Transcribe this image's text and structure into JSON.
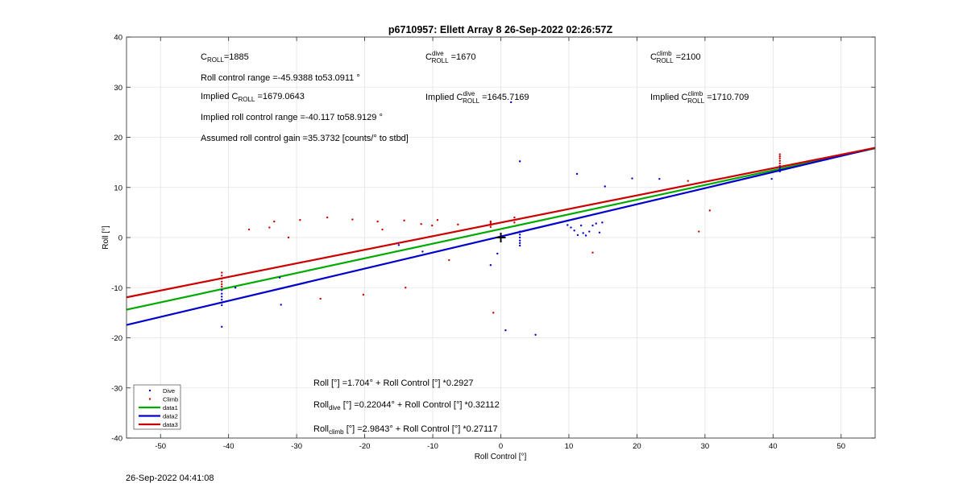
{
  "timestamp": "26-Sep-2022 04:41:08",
  "chart_data": {
    "type": "scatter",
    "title": "p6710957: Ellett Array 8 26-Sep-2022 02:26:57Z",
    "xlabel": "Roll Control [°]",
    "ylabel": "Roll [°]",
    "xlim": [
      -55,
      55
    ],
    "ylim": [
      -40,
      40
    ],
    "xticks": [
      -50,
      -40,
      -30,
      -20,
      -10,
      0,
      10,
      20,
      30,
      40,
      50
    ],
    "yticks": [
      -40,
      -30,
      -20,
      -10,
      0,
      10,
      20,
      30,
      40
    ],
    "grid": true,
    "legend_position": "bottom-left",
    "annotations": {
      "c_roll": "1885",
      "roll_range": "Roll control range =-45.9388 to53.0911 °",
      "implied_c_roll_label": "Implied C",
      "implied_c_roll": "=1679.0643",
      "implied_range": "Implied roll control range =-40.117 to58.9129 °",
      "gain": "Assumed roll control gain =35.3732 [counts/° to stbd]",
      "c_dive": "=1670",
      "implied_c_dive": "=1645.7169",
      "c_climb": "=2100",
      "implied_c_climb": "=1710.709",
      "fit_all": "Roll [°] =1.704° + Roll Control [°] *0.2927",
      "fit_dive": "[°] =0.22044° + Roll Control [°] *0.32112",
      "fit_climb": "[°] =2.9843° + Roll Control [°] *0.27117"
    },
    "series": [
      {
        "name": "Dive",
        "kind": "points",
        "color": "#0000cc",
        "points": [
          [
            -41,
            -10.5
          ],
          [
            -41,
            -11.2
          ],
          [
            -41,
            -11.8
          ],
          [
            -41,
            -12.4
          ],
          [
            -41,
            -13
          ],
          [
            -41,
            -13.5
          ],
          [
            -41,
            -17.8
          ],
          [
            -39,
            -10
          ],
          [
            -32.5,
            -8
          ],
          [
            -32.3,
            -13.4
          ],
          [
            -15,
            -1.5
          ],
          [
            -11.5,
            -2.8
          ],
          [
            -1.5,
            -5.5
          ],
          [
            -0.5,
            -3.2
          ],
          [
            0.7,
            -18.5
          ],
          [
            1.5,
            27
          ],
          [
            2.8,
            15.2
          ],
          [
            2.8,
            1.2
          ],
          [
            2.8,
            0.6
          ],
          [
            2.8,
            0
          ],
          [
            2.8,
            -0.6
          ],
          [
            2.8,
            -1.1
          ],
          [
            2.8,
            -1.6
          ],
          [
            5.1,
            -19.4
          ],
          [
            9.8,
            2.5
          ],
          [
            10.3,
            2
          ],
          [
            10.8,
            1.4
          ],
          [
            11.2,
            12.7
          ],
          [
            11.3,
            0.5
          ],
          [
            11.8,
            2.4
          ],
          [
            12.1,
            0.9
          ],
          [
            12.5,
            0.4
          ],
          [
            13,
            1.2
          ],
          [
            13.5,
            2.4
          ],
          [
            14,
            2.8
          ],
          [
            14.5,
            1
          ],
          [
            14.9,
            3
          ],
          [
            15.3,
            10.2
          ],
          [
            19.3,
            11.8
          ],
          [
            23.3,
            11.7
          ],
          [
            39.8,
            11.7
          ],
          [
            41,
            13.2
          ],
          [
            41,
            13.6
          ],
          [
            41,
            14
          ]
        ]
      },
      {
        "name": "Climb",
        "kind": "points",
        "color": "#cc0000",
        "points": [
          [
            -41,
            -7
          ],
          [
            -41,
            -7.6
          ],
          [
            -41,
            -8.2
          ],
          [
            -41,
            -8.8
          ],
          [
            -41,
            -9.3
          ],
          [
            -41,
            -9.8
          ],
          [
            -37,
            1.6
          ],
          [
            -34,
            2
          ],
          [
            -33.3,
            3.2
          ],
          [
            -31.2,
            0
          ],
          [
            -29.5,
            3.5
          ],
          [
            -25.5,
            4
          ],
          [
            -21.8,
            3.6
          ],
          [
            -18.1,
            3.2
          ],
          [
            -17.4,
            1.6
          ],
          [
            -14.2,
            3.4
          ],
          [
            -14,
            -10
          ],
          [
            -11.7,
            2.7
          ],
          [
            -10.1,
            2.4
          ],
          [
            -9.3,
            3.5
          ],
          [
            -7.6,
            -4.5
          ],
          [
            -6.3,
            2.6
          ],
          [
            -26.5,
            -12.2
          ],
          [
            -20.2,
            -11.4
          ],
          [
            -1.5,
            2.1
          ],
          [
            -1.5,
            2.5
          ],
          [
            -1.5,
            2.9
          ],
          [
            -1.5,
            3.2
          ],
          [
            -1.1,
            -15
          ],
          [
            2,
            3
          ],
          [
            2,
            3.5
          ],
          [
            2,
            4
          ],
          [
            13.5,
            -3
          ],
          [
            27.5,
            11.3
          ],
          [
            29.1,
            1.2
          ],
          [
            30.7,
            5.4
          ],
          [
            41,
            14.3
          ],
          [
            41,
            14.8
          ],
          [
            41,
            15.3
          ],
          [
            41,
            15.8
          ],
          [
            41,
            16.2
          ],
          [
            41,
            16.6
          ]
        ]
      },
      {
        "name": "data1",
        "kind": "line",
        "color": "#00aa00",
        "intercept": 1.704,
        "slope": 0.2927
      },
      {
        "name": "data2",
        "kind": "line",
        "color": "#0000cc",
        "intercept": 0.22044,
        "slope": 0.32112
      },
      {
        "name": "data3",
        "kind": "line",
        "color": "#cc0000",
        "intercept": 2.9843,
        "slope": 0.27117
      }
    ],
    "center_marker": [
      0,
      0
    ]
  }
}
